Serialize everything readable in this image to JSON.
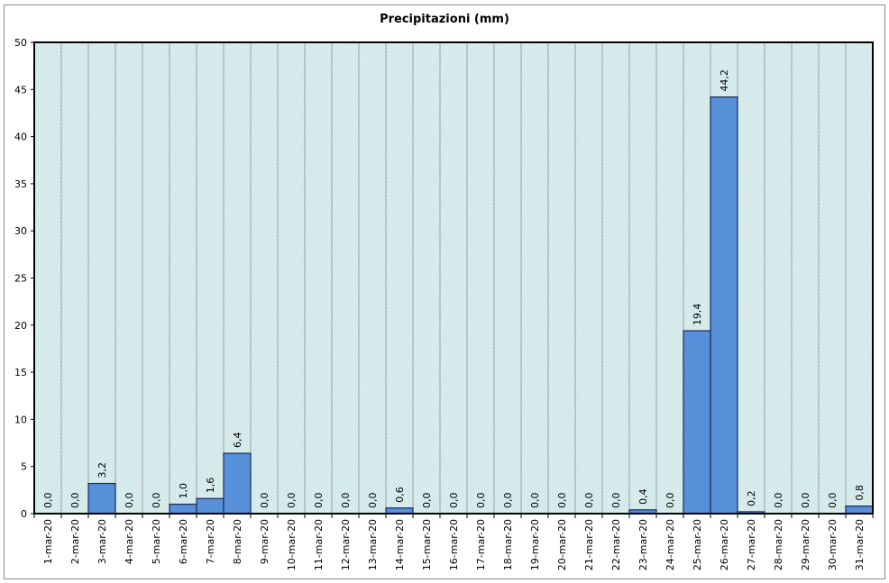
{
  "chart_data": {
    "type": "bar",
    "title": "Precipitazioni (mm)",
    "xlabel": "",
    "ylabel": "",
    "ylim": [
      0,
      50
    ],
    "yticks": [
      0,
      5,
      10,
      15,
      20,
      25,
      30,
      35,
      40,
      45,
      50
    ],
    "grid": "vertical",
    "legend": "none",
    "categories": [
      "1-mar-20",
      "2-mar-20",
      "3-mar-20",
      "4-mar-20",
      "5-mar-20",
      "6-mar-20",
      "7-mar-20",
      "8-mar-20",
      "9-mar-20",
      "10-mar-20",
      "11-mar-20",
      "12-mar-20",
      "13-mar-20",
      "14-mar-20",
      "15-mar-20",
      "16-mar-20",
      "17-mar-20",
      "18-mar-20",
      "19-mar-20",
      "20-mar-20",
      "21-mar-20",
      "22-mar-20",
      "23-mar-20",
      "24-mar-20",
      "25-mar-20",
      "26-mar-20",
      "27-mar-20",
      "28-mar-20",
      "29-mar-20",
      "30-mar-20",
      "31-mar-20"
    ],
    "values": [
      0.0,
      0.0,
      3.2,
      0.0,
      0.0,
      1.0,
      1.6,
      6.4,
      0.0,
      0.0,
      0.0,
      0.0,
      0.0,
      0.6,
      0.0,
      0.0,
      0.0,
      0.0,
      0.0,
      0.0,
      0.0,
      0.0,
      0.4,
      0.0,
      19.4,
      44.2,
      0.2,
      0.0,
      0.0,
      0.0,
      0.8
    ],
    "data_labels": [
      "0,0",
      "0,0",
      "3,2",
      "0,0",
      "0,0",
      "1,0",
      "1,6",
      "6,4",
      "0,0",
      "0,0",
      "0,0",
      "0,0",
      "0,0",
      "0,6",
      "0,0",
      "0,0",
      "0,0",
      "0,0",
      "0,0",
      "0,0",
      "0,0",
      "0,0",
      "0,4",
      "0,0",
      "19,4",
      "44,2",
      "0,2",
      "0,0",
      "0,0",
      "0,0",
      "0,8"
    ],
    "colors": {
      "bar": "#5590d8",
      "bar_border": "#1a2a5a",
      "plot_bg": "#dff0f0",
      "gridline": "#a0a0a0",
      "axis": "#000000"
    }
  }
}
